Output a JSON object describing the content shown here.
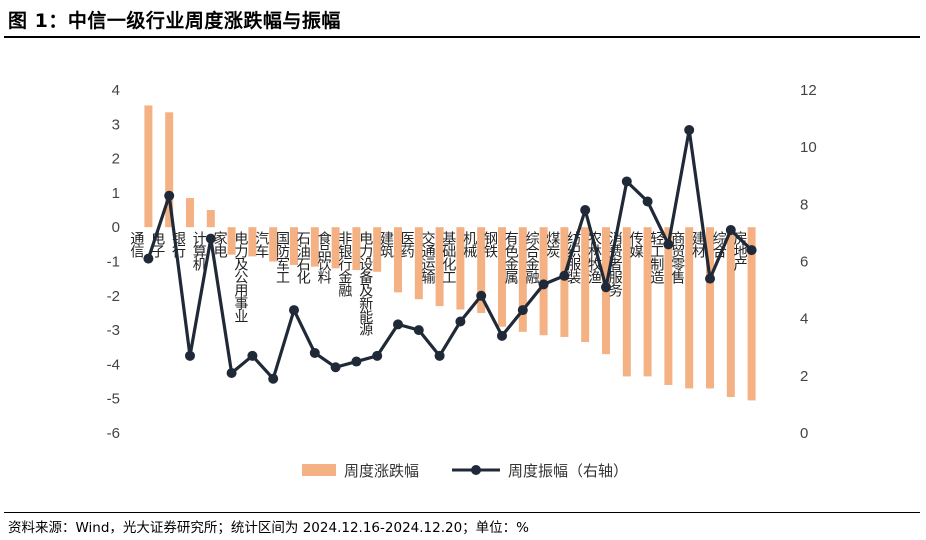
{
  "title": "图 1：中信一级行业周度涨跌幅与振幅",
  "source": "资料来源：Wind，光大证券研究所；统计区间为 2024.12.16-2024.12.20；单位：%",
  "chart_data": {
    "type": "bar+line",
    "categories": [
      "通信",
      "电子",
      "银行",
      "计算机",
      "家电",
      "电力及公用事业",
      "汽车",
      "国防军工",
      "石油石化",
      "食品饮料",
      "非银行金融",
      "电力设备及新能源",
      "建筑",
      "医药",
      "交通运输",
      "基础化工",
      "机械",
      "钢铁",
      "有色金属",
      "综合金融",
      "煤炭",
      "纺织服装",
      "农林牧渔",
      "消费者服务",
      "传媒",
      "轻工制造",
      "商贸零售",
      "建材",
      "综合",
      "房地产"
    ],
    "series": [
      {
        "name": "周度涨跌幅",
        "axis": "left",
        "type": "bar",
        "color": "#F4B183",
        "values": [
          3.55,
          3.35,
          0.85,
          0.5,
          -0.8,
          -0.85,
          -1.0,
          -1.1,
          -1.15,
          -1.2,
          -1.25,
          -1.3,
          -1.9,
          -2.1,
          -2.3,
          -2.4,
          -2.5,
          -2.9,
          -3.05,
          -3.15,
          -3.2,
          -3.35,
          -3.7,
          -4.35,
          -4.35,
          -4.6,
          -4.7,
          -4.7,
          -4.95,
          -5.05
        ]
      },
      {
        "name": "周度振幅（右轴）",
        "axis": "right",
        "type": "line",
        "color": "#1F2937",
        "values": [
          6.1,
          8.3,
          2.7,
          6.8,
          2.1,
          2.7,
          1.9,
          4.3,
          2.8,
          2.3,
          2.5,
          2.7,
          3.8,
          3.6,
          2.7,
          3.9,
          4.8,
          3.4,
          4.3,
          5.2,
          5.5,
          7.8,
          5.1,
          8.8,
          8.1,
          6.6,
          10.6,
          5.4,
          7.1,
          6.4
        ]
      }
    ],
    "left_axis": {
      "ticks": [
        4,
        3,
        2,
        1,
        0,
        -1,
        -2,
        -3,
        -4,
        -5,
        -6
      ],
      "ylim": [
        -6,
        4
      ]
    },
    "right_axis": {
      "ticks": [
        12,
        10,
        8,
        6,
        4,
        2,
        0
      ],
      "ylim": [
        0,
        12
      ]
    },
    "legend": {
      "position": "bottom",
      "items": [
        "周度涨跌幅",
        "周度振幅（右轴）"
      ]
    },
    "grid": false
  }
}
